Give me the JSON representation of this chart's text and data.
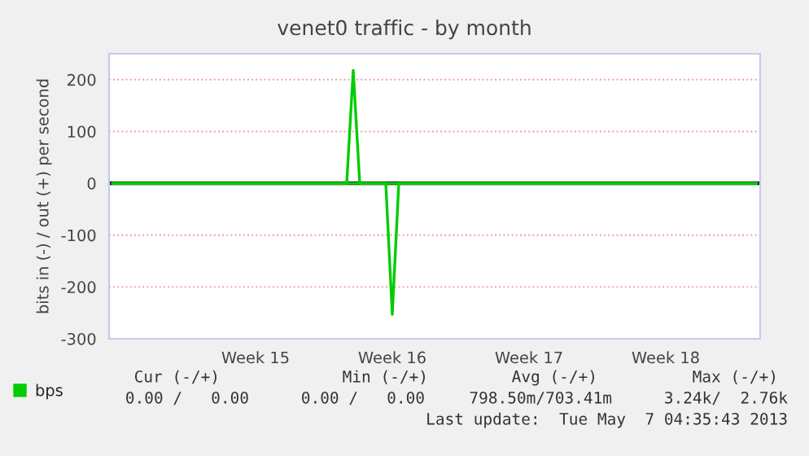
{
  "chart_data": {
    "type": "line",
    "title": "venet0 traffic - by month",
    "ylabel": "bits in (-) / out (+) per second",
    "categories": [
      null,
      null,
      null,
      null,
      null,
      null,
      null,
      null,
      null,
      null,
      null,
      null,
      null,
      null,
      null,
      null,
      null,
      null,
      null,
      null,
      null,
      null,
      "Week 15",
      null,
      null,
      null,
      null,
      null,
      null,
      null,
      null,
      null,
      null,
      null,
      null,
      null,
      null,
      null,
      null,
      null,
      null,
      null,
      null,
      "Week 16",
      null,
      null,
      null,
      null,
      null,
      null,
      null,
      null,
      null,
      null,
      null,
      null,
      null,
      null,
      null,
      null,
      null,
      null,
      null,
      null,
      "Week 17",
      null,
      null,
      null,
      null,
      null,
      null,
      null,
      null,
      null,
      null,
      null,
      null,
      null,
      null,
      null,
      null,
      null,
      null,
      null,
      null,
      "Week 18",
      null,
      null,
      null,
      null,
      null,
      null,
      null,
      null,
      null,
      null,
      null,
      null,
      null,
      null
    ],
    "series": [
      {
        "name": "bps",
        "color": "#00cc00",
        "values": [
          0,
          0,
          0,
          0,
          0,
          0,
          0,
          0,
          0,
          0,
          0,
          0,
          0,
          0,
          0,
          0,
          0,
          0,
          0,
          0,
          0,
          0,
          0,
          0,
          0,
          0,
          0,
          0,
          0,
          0,
          0,
          0,
          0,
          0,
          0,
          0,
          0,
          218,
          0,
          0,
          0,
          0,
          0,
          0,
          0,
          0,
          0,
          0,
          0,
          0,
          0,
          0,
          0,
          0,
          0,
          0,
          0,
          0,
          0,
          0,
          0,
          0,
          0,
          0,
          0,
          0,
          0,
          0,
          0,
          0,
          0,
          0,
          0,
          0,
          0,
          0,
          0,
          0,
          0,
          0,
          0,
          0,
          0,
          0,
          0,
          0,
          0,
          0,
          0,
          0,
          0,
          0,
          0,
          0,
          0,
          0,
          0,
          0,
          0,
          0
        ]
      },
      {
        "color": "#00cc00",
        "values": [
          0,
          0,
          0,
          0,
          0,
          0,
          0,
          0,
          0,
          0,
          0,
          0,
          0,
          0,
          0,
          0,
          0,
          0,
          0,
          0,
          0,
          0,
          0,
          0,
          0,
          0,
          0,
          0,
          0,
          0,
          0,
          0,
          0,
          0,
          0,
          0,
          0,
          0,
          0,
          0,
          0,
          0,
          0,
          -253,
          0,
          0,
          0,
          0,
          0,
          0,
          0,
          0,
          0,
          0,
          0,
          0,
          0,
          0,
          0,
          0,
          0,
          0,
          0,
          0,
          0,
          0,
          0,
          0,
          0,
          0,
          0,
          0,
          0,
          0,
          0,
          0,
          0,
          0,
          0,
          0,
          0,
          0,
          0,
          0,
          0,
          0,
          0,
          0,
          0,
          0,
          0,
          0,
          0,
          0,
          0,
          0,
          0,
          0,
          0,
          0
        ]
      }
    ],
    "ylim": [
      -300,
      250
    ],
    "yticks": [
      -300,
      -200,
      -100,
      0,
      100,
      200
    ],
    "ref_lines": [
      {
        "axis": "y",
        "value": 0,
        "color": "#000000"
      }
    ],
    "grid": "y",
    "legend": "bottom left",
    "annotations": [
      "Cur (-/+)",
      "Min (-/+)",
      "Avg (-/+)",
      "Max (-/+)",
      "0.00 /   0.00",
      "0.00 /   0.00",
      "798.50m/703.41m",
      "3.24k/  2.76k",
      "Last update:  Tue May  7 04:35:43 2013"
    ]
  }
}
